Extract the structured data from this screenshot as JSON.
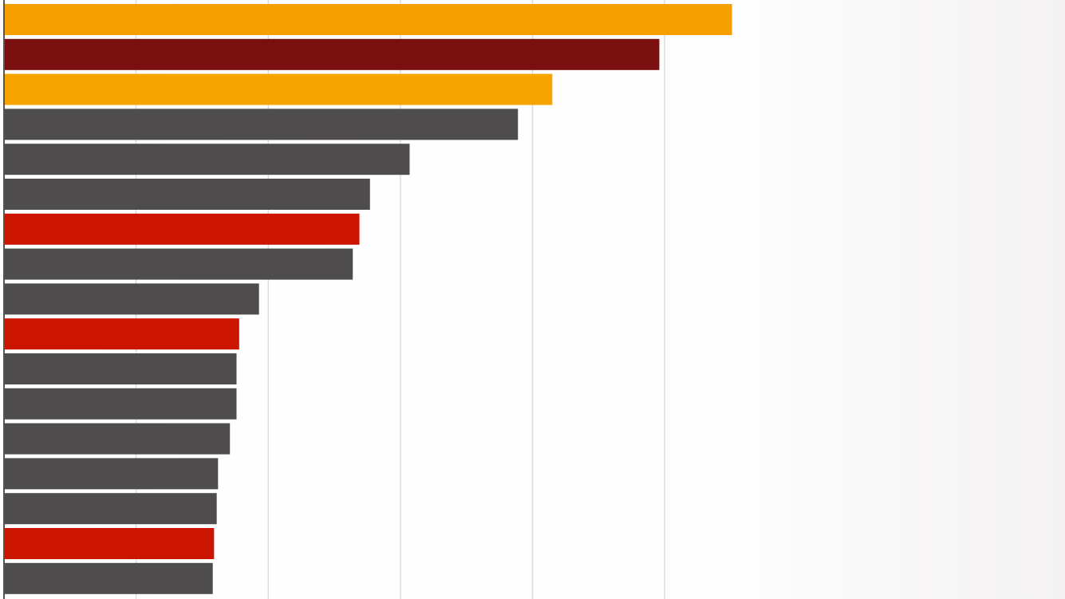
{
  "chart_data": {
    "type": "bar",
    "orientation": "horizontal",
    "values": [
      5.51,
      4.96,
      4.15,
      3.89,
      3.07,
      2.77,
      2.69,
      2.64,
      1.93,
      1.78,
      1.76,
      1.76,
      1.71,
      1.62,
      1.61,
      1.59,
      1.58
    ],
    "colors": [
      "#f5a000",
      "#7a0f0f",
      "#f7a400",
      "#4e4c4c",
      "#4e4c4c",
      "#4e4c4c",
      "#cc1500",
      "#4e4c4c",
      "#4e4c4c",
      "#cc1500",
      "#4e4c4c",
      "#4e4c4c",
      "#4e4c4c",
      "#4e4c4c",
      "#4e4c4c",
      "#cc1500",
      "#4e4c4c"
    ],
    "xlim": [
      0,
      8
    ],
    "xticks": [
      1,
      2,
      3,
      4,
      5
    ],
    "grid": true
  }
}
